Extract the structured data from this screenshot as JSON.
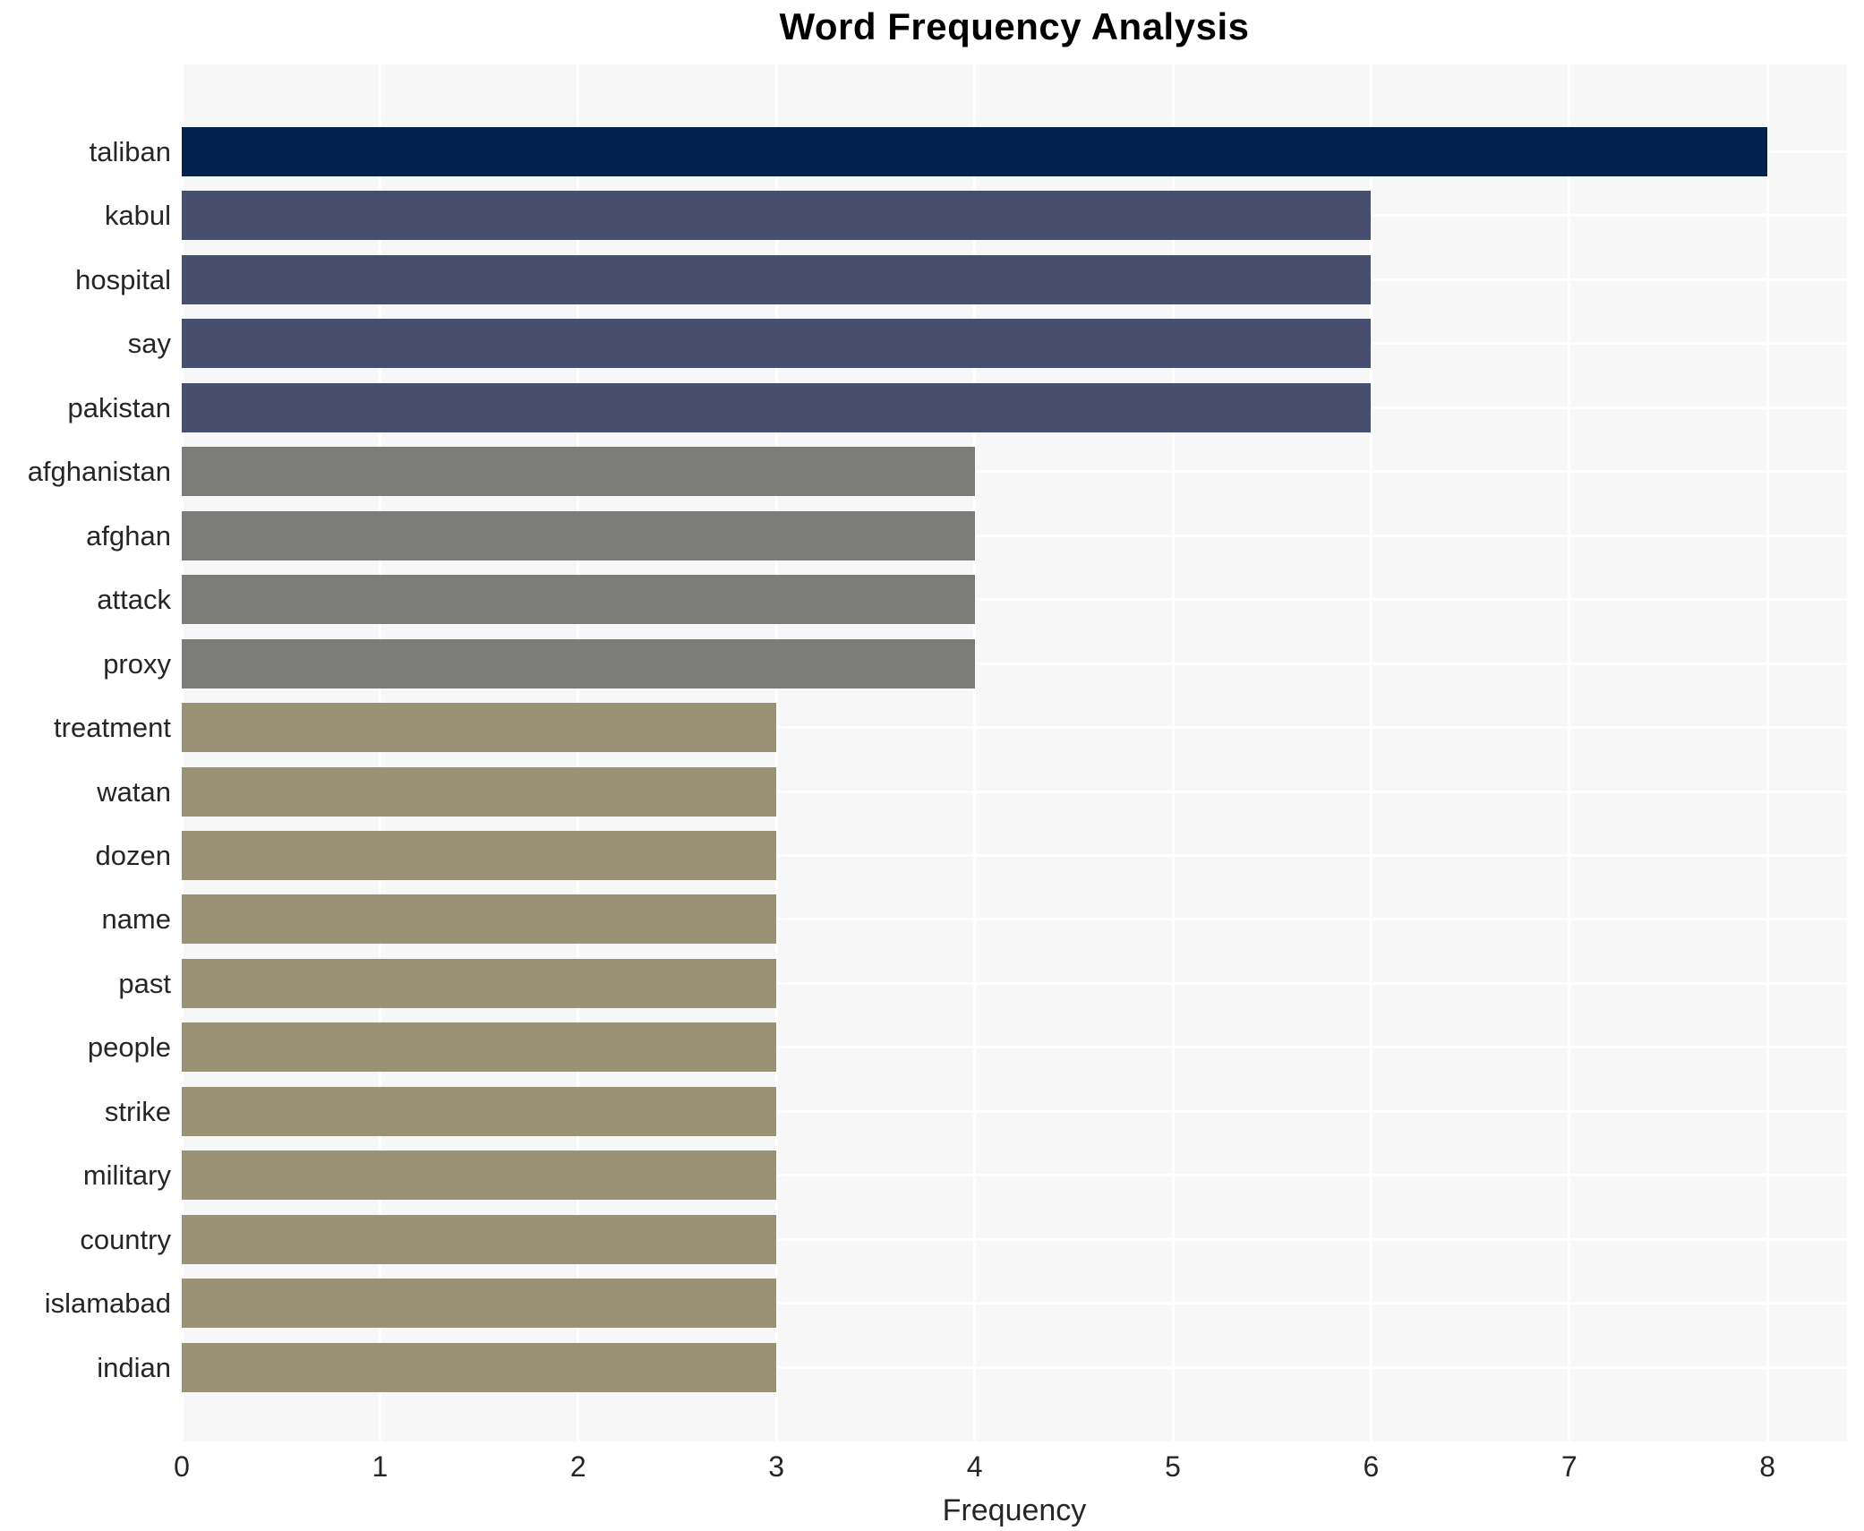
{
  "chart_data": {
    "type": "bar",
    "orientation": "horizontal",
    "title": "Word Frequency Analysis",
    "xlabel": "Frequency",
    "ylabel": "",
    "categories": [
      "taliban",
      "kabul",
      "hospital",
      "say",
      "pakistan",
      "afghanistan",
      "afghan",
      "attack",
      "proxy",
      "treatment",
      "watan",
      "dozen",
      "name",
      "past",
      "people",
      "strike",
      "military",
      "country",
      "islamabad",
      "indian"
    ],
    "values": [
      8,
      6,
      6,
      6,
      6,
      4,
      4,
      4,
      4,
      3,
      3,
      3,
      3,
      3,
      3,
      3,
      3,
      3,
      3,
      3
    ],
    "value_colors": {
      "8": "#02224e",
      "6": "#46506e",
      "4": "#7b7b77",
      "3": "#9a9274"
    },
    "x_ticks": [
      0,
      1,
      2,
      3,
      4,
      5,
      6,
      7,
      8
    ],
    "xlim": [
      0,
      8.4
    ],
    "grid": true,
    "legend": false,
    "plot_background": "#f7f7f8",
    "grid_color": "#ffffff"
  }
}
